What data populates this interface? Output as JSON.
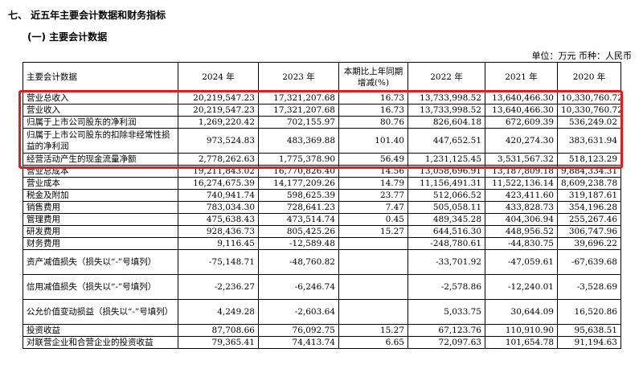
{
  "section_title": "七、 近五年主要会计数据和财务指标",
  "subsection_title": "(一) 主要会计数据",
  "unit_note": "单位：万元  币种：人民币",
  "table": {
    "headers": [
      "主要会计数据",
      "2024 年",
      "2023 年",
      "本期比上年同期增减(%)",
      "2022 年",
      "2021 年",
      "2020 年"
    ],
    "rows": [
      {
        "label": "营业总收入",
        "values": [
          "20,219,547.23",
          "17,321,207.68",
          "16.73",
          "13,733,998.52",
          "13,640,466.30",
          "10,330,760.72"
        ]
      },
      {
        "label": "营业收入",
        "values": [
          "20,219,547.23",
          "17,321,207.68",
          "16.73",
          "13,733,998.52",
          "13,640,466.30",
          "10,330,760.72"
        ]
      },
      {
        "label": "归属于上市公司股东的净利润",
        "values": [
          "1,269,220.42",
          "702,155.97",
          "80.76",
          "826,604.18",
          "672,609.39",
          "536,249.02"
        ]
      },
      {
        "label": "归属于上市公司股东的扣除非经常性损益的净利润",
        "values": [
          "973,524.83",
          "483,369.88",
          "101.40",
          "447,652.51",
          "420,274.30",
          "383,631.94"
        ]
      },
      {
        "label": "经营活动产生的现金流量净额",
        "values": [
          "2,778,262.63",
          "1,775,378.90",
          "56.49",
          "1,231,125.45",
          "3,531,567.32",
          "518,123.29"
        ]
      },
      {
        "label": "营业总成本",
        "values": [
          "19,211,843.02",
          "16,770,826.40",
          "14.56",
          "13,058,696.91",
          "13,187,809.18",
          "9,884,334.31"
        ]
      },
      {
        "label": "营业成本",
        "values": [
          "16,274,675.39",
          "14,177,209.26",
          "14.79",
          "11,156,491.31",
          "11,522,136.14",
          "8,609,238.78"
        ]
      },
      {
        "label": "税金及附加",
        "values": [
          "740,941.74",
          "598,625.39",
          "23.77",
          "512,066.52",
          "423,411.60",
          "319,187.61"
        ]
      },
      {
        "label": "销售费用",
        "values": [
          "783,034.30",
          "728,641.23",
          "7.47",
          "505,058.11",
          "433,828.73",
          "354,196.28"
        ]
      },
      {
        "label": "管理费用",
        "values": [
          "475,638.43",
          "473,514.74",
          "0.45",
          "489,345.28",
          "404,306.94",
          "255,267.46"
        ]
      },
      {
        "label": "研发费用",
        "values": [
          "928,436.73",
          "805,425.26",
          "15.27",
          "644,516.30",
          "448,956.52",
          "306,747.96"
        ]
      },
      {
        "label": "财务费用",
        "values": [
          "9,116.45",
          "-12,589.48",
          "",
          "-248,780.61",
          "-44,830.75",
          "39,696.22"
        ]
      },
      {
        "label": "资产减值损失（损失以“-”号填列）",
        "values": [
          "-75,148.71",
          "-48,760.82",
          "",
          "-33,701.92",
          "-47,059.61",
          "-67,639.68"
        ]
      },
      {
        "label": "信用减值损失（损失以“-”号填列）",
        "values": [
          "-2,236.27",
          "-6,246.74",
          "",
          "-2,578.86",
          "-12,240.01",
          "-3,528.69"
        ]
      },
      {
        "label": "公允价值变动损益（损失以“-”号填列）",
        "values": [
          "4,249.28",
          "-2,603.64",
          "",
          "5,033.75",
          "30,644.09",
          "16,520.86"
        ]
      },
      {
        "label": "投资收益",
        "values": [
          "87,708.66",
          "76,092.75",
          "15.27",
          "67,123.76",
          "110,910.90",
          "95,638.51"
        ]
      },
      {
        "label": "对联营企业和合营企业的投资收益",
        "values": [
          "79,365.41",
          "74,413.74",
          "6.65",
          "72,097.63",
          "101,654.78",
          "91,194.63"
        ]
      }
    ]
  }
}
